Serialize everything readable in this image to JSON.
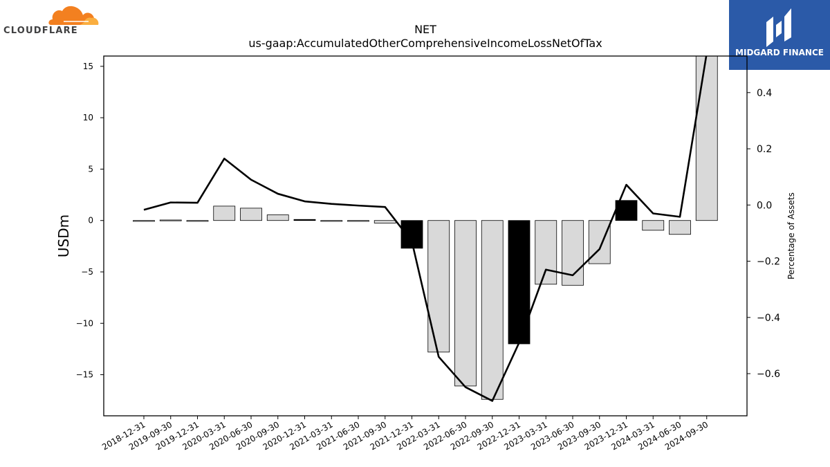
{
  "logos": {
    "left_text": "CLOUDFLARE",
    "right_text": "MIDGARD FINANCE",
    "left_brand_color": "#f38020",
    "right_brand_color": "#2b5aa8"
  },
  "chart_data": {
    "type": "bar",
    "title": "NET",
    "subtitle": "us-gaap:AccumulatedOtherComprehensiveIncomeLossNetOfTax",
    "ylabel": "USDm",
    "y2label": "Percentage of Assets",
    "ylim": [
      -19,
      16
    ],
    "y2lim": [
      -0.75,
      0.53
    ],
    "yticks": [
      -15,
      -10,
      -5,
      0,
      5,
      10,
      15
    ],
    "yticklabels": [
      "−15",
      "−10",
      "−5",
      "0",
      "5",
      "10",
      "15"
    ],
    "y2ticks": [
      -0.6,
      -0.4,
      -0.2,
      0.0,
      0.2,
      0.4
    ],
    "y2ticklabels": [
      "−0.6",
      "−0.4",
      "−0.2",
      "0.0",
      "0.2",
      "0.4"
    ],
    "categories": [
      "2018-12-31",
      "2019-09-30",
      "2019-12-31",
      "2020-03-31",
      "2020-06-30",
      "2020-09-30",
      "2020-12-31",
      "2021-03-31",
      "2021-06-30",
      "2021-09-30",
      "2021-12-31",
      "2022-03-31",
      "2022-06-30",
      "2022-09-30",
      "2022-12-31",
      "2023-03-31",
      "2023-06-30",
      "2023-09-30",
      "2023-12-31",
      "2024-03-31",
      "2024-06-30",
      "2024-09-30"
    ],
    "series": [
      {
        "type": "bar",
        "values": [
          -0.05,
          0.05,
          -0.03,
          1.4,
          1.2,
          0.55,
          0.1,
          -0.02,
          -0.05,
          -0.25,
          -2.7,
          -12.8,
          -16.1,
          -17.4,
          -12.0,
          -6.2,
          -6.3,
          -4.2,
          1.95,
          -0.95,
          -1.35,
          16.0
        ],
        "highlight": [
          false,
          false,
          false,
          false,
          false,
          false,
          true,
          false,
          false,
          false,
          true,
          false,
          false,
          false,
          true,
          false,
          false,
          false,
          true,
          false,
          false,
          false
        ],
        "color": "#d9d9d9",
        "highlight_color": "#000000"
      },
      {
        "type": "line",
        "axis": "right",
        "values": [
          -0.017,
          0.009,
          0.008,
          0.165,
          0.09,
          0.04,
          0.013,
          0.004,
          -0.002,
          -0.007,
          -0.13,
          -0.54,
          -0.648,
          -0.697,
          -0.49,
          -0.23,
          -0.25,
          -0.157,
          0.072,
          -0.03,
          -0.042,
          0.54
        ],
        "color": "#000000"
      }
    ],
    "grid": false,
    "legend": "none"
  }
}
